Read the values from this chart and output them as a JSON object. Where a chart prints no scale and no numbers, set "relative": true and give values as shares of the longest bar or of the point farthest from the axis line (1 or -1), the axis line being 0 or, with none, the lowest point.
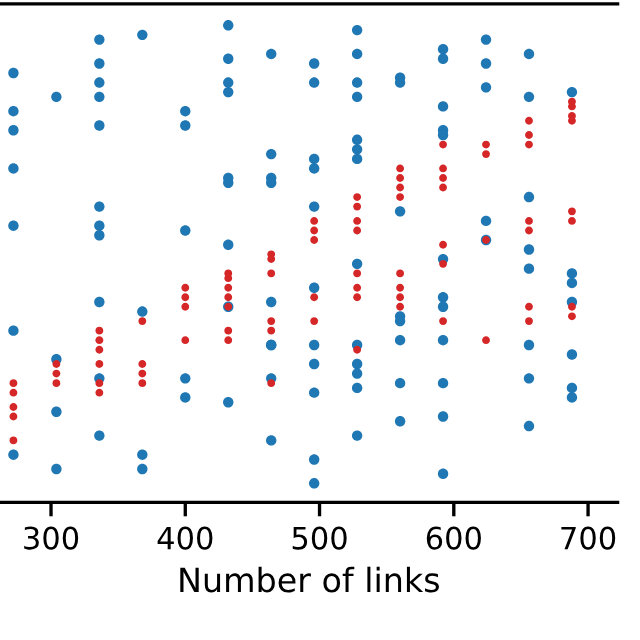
{
  "chart_data": {
    "type": "scatter",
    "xlabel": "Number of links",
    "relative": true,
    "xlim": [
      262,
      722
    ],
    "xticks": [
      300,
      400,
      500,
      600,
      700
    ],
    "tick_labels": "x",
    "grid": false,
    "legend": false,
    "marker": "circle",
    "series": [
      {
        "color": "#1f77b4",
        "x": [
          272,
          272,
          272,
          272,
          272,
          272,
          272,
          304,
          304,
          304,
          304,
          336,
          336,
          336,
          336,
          336,
          336,
          336,
          336,
          336,
          336,
          336,
          368,
          368,
          368,
          368,
          400,
          400,
          400,
          400,
          400,
          432,
          432,
          432,
          432,
          432,
          432,
          432,
          432,
          432,
          464,
          464,
          464,
          464,
          464,
          464,
          464,
          464,
          464,
          496,
          496,
          496,
          496,
          496,
          496,
          496,
          496,
          496,
          496,
          496,
          528,
          528,
          528,
          528,
          528,
          528,
          528,
          528,
          528,
          528,
          528,
          528,
          528,
          560,
          560,
          560,
          560,
          560,
          560,
          560,
          560,
          592,
          592,
          592,
          592,
          592,
          592,
          592,
          592,
          592,
          592,
          592,
          592,
          624,
          624,
          624,
          624,
          624,
          656,
          656,
          656,
          656,
          656,
          656,
          656,
          656,
          688,
          688,
          688,
          688,
          688,
          688,
          688
        ],
        "values": [
          0.9,
          0.82,
          0.78,
          0.7,
          0.58,
          0.36,
          0.1,
          0.85,
          0.3,
          0.19,
          0.07,
          0.97,
          0.92,
          0.88,
          0.85,
          0.79,
          0.62,
          0.58,
          0.56,
          0.42,
          0.26,
          0.14,
          0.98,
          0.4,
          0.1,
          0.07,
          0.82,
          0.79,
          0.57,
          0.26,
          0.22,
          1.0,
          0.93,
          0.88,
          0.86,
          0.68,
          0.67,
          0.54,
          0.41,
          0.21,
          0.94,
          0.73,
          0.68,
          0.67,
          0.42,
          0.33,
          0.33,
          0.26,
          0.13,
          0.92,
          0.88,
          0.72,
          0.7,
          0.62,
          0.45,
          0.33,
          0.29,
          0.23,
          0.09,
          0.04,
          0.99,
          0.94,
          0.88,
          0.85,
          0.76,
          0.74,
          0.72,
          0.5,
          0.33,
          0.29,
          0.27,
          0.24,
          0.14,
          0.89,
          0.88,
          0.61,
          0.39,
          0.38,
          0.34,
          0.25,
          0.17,
          0.95,
          0.93,
          0.83,
          0.78,
          0.77,
          0.51,
          0.43,
          0.41,
          0.34,
          0.25,
          0.18,
          0.06,
          0.97,
          0.92,
          0.87,
          0.59,
          0.55,
          0.94,
          0.85,
          0.64,
          0.53,
          0.49,
          0.33,
          0.26,
          0.16,
          0.86,
          0.48,
          0.46,
          0.42,
          0.31,
          0.24,
          0.22
        ]
      },
      {
        "color": "#d62728",
        "x": [
          272,
          272,
          272,
          272,
          272,
          304,
          304,
          304,
          336,
          336,
          336,
          336,
          336,
          336,
          368,
          368,
          368,
          368,
          400,
          400,
          400,
          400,
          432,
          432,
          432,
          432,
          432,
          432,
          432,
          464,
          464,
          464,
          464,
          464,
          464,
          496,
          496,
          496,
          496,
          496,
          528,
          528,
          528,
          528,
          528,
          528,
          528,
          528,
          560,
          560,
          560,
          560,
          560,
          560,
          560,
          560,
          592,
          592,
          592,
          592,
          592,
          592,
          592,
          624,
          624,
          624,
          624,
          656,
          656,
          656,
          656,
          656,
          656,
          656,
          688,
          688,
          688,
          688,
          688,
          688,
          688,
          688
        ],
        "values": [
          0.25,
          0.23,
          0.2,
          0.18,
          0.13,
          0.29,
          0.27,
          0.25,
          0.36,
          0.34,
          0.32,
          0.29,
          0.25,
          0.23,
          0.38,
          0.29,
          0.27,
          0.25,
          0.45,
          0.43,
          0.41,
          0.34,
          0.48,
          0.47,
          0.45,
          0.43,
          0.41,
          0.36,
          0.34,
          0.52,
          0.51,
          0.48,
          0.38,
          0.36,
          0.25,
          0.59,
          0.57,
          0.55,
          0.43,
          0.38,
          0.64,
          0.62,
          0.59,
          0.57,
          0.48,
          0.45,
          0.43,
          0.32,
          0.7,
          0.68,
          0.66,
          0.64,
          0.48,
          0.45,
          0.43,
          0.41,
          0.75,
          0.7,
          0.68,
          0.66,
          0.54,
          0.5,
          0.38,
          0.75,
          0.73,
          0.55,
          0.34,
          0.8,
          0.77,
          0.75,
          0.59,
          0.57,
          0.41,
          0.38,
          0.84,
          0.83,
          0.81,
          0.8,
          0.61,
          0.59,
          0.41,
          0.39
        ]
      }
    ]
  }
}
